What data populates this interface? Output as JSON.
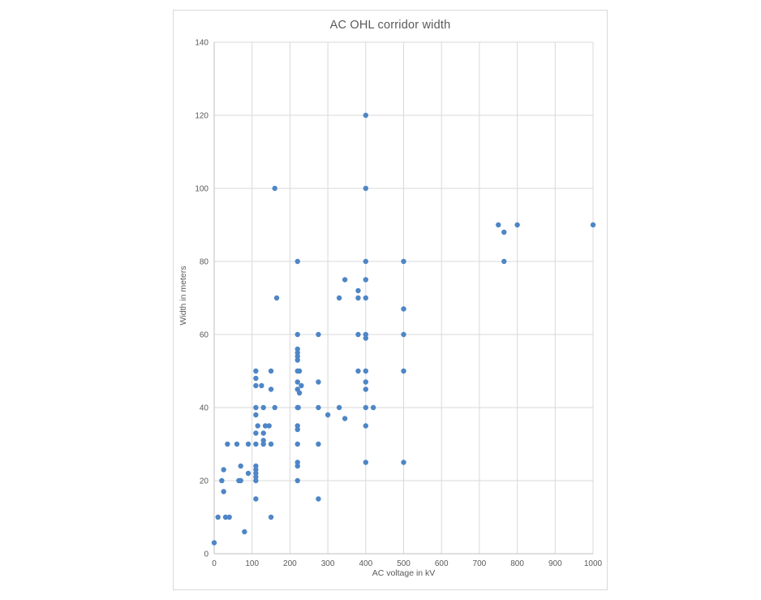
{
  "chart_data": {
    "type": "scatter",
    "title": "AC OHL corridor width",
    "xlabel": "AC voltage in kV",
    "ylabel": "Width in meters",
    "xlim": [
      0,
      1000
    ],
    "ylim": [
      0,
      140
    ],
    "x_tick_interval": 100,
    "y_tick_interval": 20,
    "grid": true,
    "legend": false,
    "style": {
      "marker_color": "#4e86c6",
      "gridline_color": "#d9d9d9",
      "axis_line_color": "#bfbfbf",
      "text_color": "#595959",
      "border_color": "#d9d9d9",
      "marker_radius": 3.2
    },
    "points": [
      [
        0,
        3
      ],
      [
        10,
        10
      ],
      [
        20,
        20
      ],
      [
        25,
        17
      ],
      [
        25,
        23
      ],
      [
        30,
        10
      ],
      [
        35,
        30
      ],
      [
        40,
        10
      ],
      [
        60,
        30
      ],
      [
        65,
        20
      ],
      [
        70,
        20
      ],
      [
        70,
        24
      ],
      [
        80,
        6
      ],
      [
        90,
        22
      ],
      [
        90,
        30
      ],
      [
        110,
        15
      ],
      [
        110,
        20
      ],
      [
        110,
        21
      ],
      [
        110,
        22
      ],
      [
        110,
        23
      ],
      [
        110,
        24
      ],
      [
        110,
        30
      ],
      [
        110,
        33
      ],
      [
        110,
        38
      ],
      [
        110,
        40
      ],
      [
        110,
        46
      ],
      [
        110,
        48
      ],
      [
        110,
        50
      ],
      [
        115,
        35
      ],
      [
        125,
        46
      ],
      [
        130,
        30
      ],
      [
        130,
        31
      ],
      [
        130,
        33
      ],
      [
        130,
        40
      ],
      [
        135,
        35
      ],
      [
        145,
        35
      ],
      [
        150,
        10
      ],
      [
        150,
        30
      ],
      [
        150,
        45
      ],
      [
        150,
        50
      ],
      [
        160,
        40
      ],
      [
        160,
        100
      ],
      [
        165,
        70
      ],
      [
        220,
        20
      ],
      [
        220,
        24
      ],
      [
        220,
        25
      ],
      [
        220,
        30
      ],
      [
        220,
        34
      ],
      [
        220,
        35
      ],
      [
        220,
        40
      ],
      [
        222,
        40
      ],
      [
        220,
        45
      ],
      [
        220,
        47
      ],
      [
        220,
        50
      ],
      [
        225,
        50
      ],
      [
        220,
        53
      ],
      [
        220,
        54
      ],
      [
        220,
        55
      ],
      [
        220,
        56
      ],
      [
        220,
        60
      ],
      [
        220,
        80
      ],
      [
        225,
        44
      ],
      [
        230,
        46
      ],
      [
        275,
        15
      ],
      [
        275,
        30
      ],
      [
        275,
        40
      ],
      [
        275,
        47
      ],
      [
        275,
        60
      ],
      [
        300,
        38
      ],
      [
        330,
        40
      ],
      [
        330,
        70
      ],
      [
        345,
        37
      ],
      [
        345,
        75
      ],
      [
        380,
        50
      ],
      [
        380,
        60
      ],
      [
        380,
        70
      ],
      [
        380,
        72
      ],
      [
        400,
        25
      ],
      [
        400,
        35
      ],
      [
        400,
        40
      ],
      [
        400,
        45
      ],
      [
        400,
        47
      ],
      [
        400,
        50
      ],
      [
        400,
        59
      ],
      [
        400,
        60
      ],
      [
        400,
        70
      ],
      [
        400,
        75
      ],
      [
        400,
        80
      ],
      [
        400,
        100
      ],
      [
        400,
        120
      ],
      [
        420,
        40
      ],
      [
        500,
        25
      ],
      [
        500,
        50
      ],
      [
        500,
        60
      ],
      [
        500,
        67
      ],
      [
        500,
        80
      ],
      [
        750,
        90
      ],
      [
        765,
        80
      ],
      [
        765,
        88
      ],
      [
        800,
        90
      ],
      [
        1000,
        90
      ]
    ]
  }
}
